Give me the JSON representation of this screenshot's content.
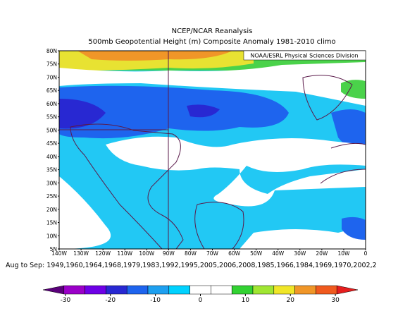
{
  "header": {
    "title": "NCEP/NCAR Reanalysis",
    "subtitle": "500mb Geopotential Height (m) Composite Anomaly 1981-2010 climo"
  },
  "map": {
    "credit": "NOAA/ESRL Physical Sciences Division",
    "lat_labels": [
      "80N",
      "75N",
      "70N",
      "65N",
      "60N",
      "55N",
      "50N",
      "45N",
      "40N",
      "35N",
      "30N",
      "25N",
      "20N",
      "15N",
      "10N",
      "5N"
    ],
    "lon_labels": [
      "140W",
      "130W",
      "120W",
      "110W",
      "100W",
      "90W",
      "80W",
      "70W",
      "60W",
      "50W",
      "40W",
      "30W",
      "20W",
      "10W",
      "0"
    ]
  },
  "caption": "Aug to Sep: 1949,1960,1964,1968,1979,1983,1992,1995,2005,2006,2008,1985,1966,1984,1969,1970,2002,2",
  "colorbar": {
    "lim": [
      -35,
      35
    ],
    "ticks": [
      -30,
      -20,
      -10,
      0,
      10,
      20,
      30
    ],
    "colors": [
      "#5a007a",
      "#9a00c8",
      "#6e00e6",
      "#2828d2",
      "#1e64ee",
      "#1ea0f0",
      "#00d2ff",
      "#ffffff",
      "#ffffff",
      "#32d232",
      "#a0e632",
      "#f0e628",
      "#f09628",
      "#f05a1e",
      "#e61e1e"
    ]
  }
}
